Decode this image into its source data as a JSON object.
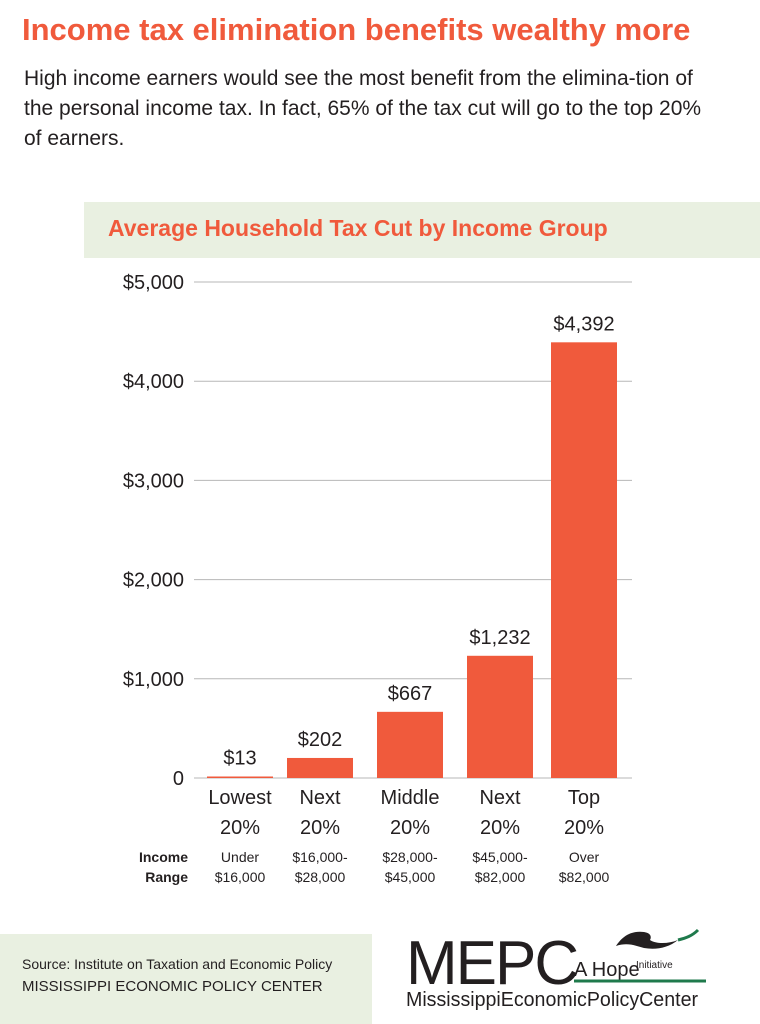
{
  "header": {
    "title": "Income tax elimination benefits wealthy more",
    "intro": "High income earners would see the most benefit from the elimina-tion of the personal income tax. In fact, 65% of the tax cut will go to the top 20% of earners."
  },
  "chart_data": {
    "type": "bar",
    "title": "Average Household Tax Cut by Income Group",
    "categories": [
      "Lowest 20%",
      "Next 20%",
      "Middle 20%",
      "Next 20%",
      "Top 20%"
    ],
    "category_lines": [
      [
        "Lowest",
        "20%"
      ],
      [
        "Next",
        "20%"
      ],
      [
        "Middle",
        "20%"
      ],
      [
        "Next",
        "20%"
      ],
      [
        "Top",
        "20%"
      ]
    ],
    "values": [
      13,
      202,
      667,
      1232,
      4392
    ],
    "value_labels": [
      "$13",
      "$202",
      "$667",
      "$1,232",
      "$4,392"
    ],
    "ylim": [
      0,
      5000
    ],
    "yticks": [
      0,
      1000,
      2000,
      3000,
      4000,
      5000
    ],
    "ytick_labels": [
      "0",
      "$1,000",
      "$2,000",
      "$3,000",
      "$4,000",
      "$5,000"
    ],
    "income_range_label": [
      "Income",
      "Range"
    ],
    "income_ranges": [
      [
        "Under",
        "$16,000"
      ],
      [
        "$16,000-",
        "$28,000"
      ],
      [
        "$28,000-",
        "$45,000"
      ],
      [
        "$45,000-",
        "$82,000"
      ],
      [
        "Over",
        "$82,000"
      ]
    ],
    "grid": true,
    "bar_color": "#f05a3c",
    "grid_color": "#b7b7b7"
  },
  "footer": {
    "source": "Source: Institute on Taxation and Economic Policy",
    "org": "MISSISSIPPI ECONOMIC POLICY CENTER"
  },
  "logo": {
    "acronym": "MEPC",
    "tagline": "A Hope",
    "tagline_suffix": "Initiative",
    "full_name": "MississippiEconomicPolicyCenter",
    "icon": "dove-icon",
    "accent_color": "#1f7a4c"
  }
}
